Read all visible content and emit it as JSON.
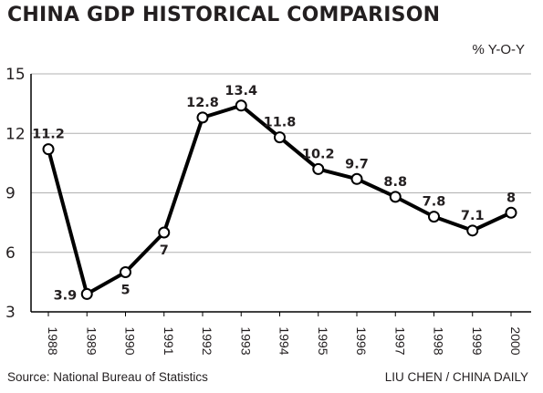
{
  "title": "CHINA GDP HISTORICAL COMPARISON",
  "unit_label": "% Y-O-Y",
  "source": "Source: National Bureau of Statistics",
  "credit": "LIU CHEN / CHINA DAILY",
  "colors": {
    "line": "#000000",
    "grid": "#b0b0b0",
    "marker_fill": "#ffffff",
    "text": "#231f20"
  },
  "chart_data": {
    "type": "line",
    "title": "CHINA GDP HISTORICAL COMPARISON",
    "ylabel": "% Y-O-Y",
    "xlabel": "",
    "categories": [
      "1988",
      "1989",
      "1990",
      "1991",
      "1992",
      "1993",
      "1994",
      "1995",
      "1996",
      "1997",
      "1998",
      "1999",
      "2000"
    ],
    "values": [
      11.2,
      3.9,
      5,
      7,
      12.8,
      13.4,
      11.8,
      10.2,
      9.7,
      8.8,
      7.8,
      7.1,
      8
    ],
    "data_labels": [
      "11.2",
      "3.9",
      "5",
      "7",
      "12.8",
      "13.4",
      "11.8",
      "10.2",
      "9.7",
      "8.8",
      "7.8",
      "7.1",
      "8"
    ],
    "label_positions": [
      "above",
      "left",
      "below",
      "below",
      "above",
      "above",
      "above",
      "above",
      "above",
      "above",
      "above",
      "above",
      "above"
    ],
    "ylim": [
      3,
      15
    ],
    "yticks": [
      3,
      6,
      9,
      12,
      15
    ],
    "grid": true,
    "markers": "hollow-circle"
  }
}
